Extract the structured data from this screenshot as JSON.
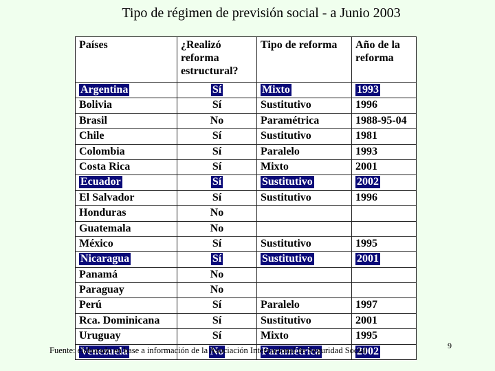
{
  "title": "Tipo de régimen de previsión social - a Junio 2003",
  "table": {
    "headers": [
      "Países",
      "¿Realizó reforma estructural?",
      "Tipo de reforma",
      "Año de la reforma"
    ],
    "rows": [
      {
        "country": "Argentina",
        "reform": "Sí",
        "type": "Mixto",
        "year": "1993",
        "highlight": true
      },
      {
        "country": "Bolivia",
        "reform": "Sí",
        "type": "Sustitutivo",
        "year": "1996",
        "highlight": false
      },
      {
        "country": "Brasil",
        "reform": "No",
        "type": "Paramétrica",
        "year": "1988-95-04",
        "highlight": false
      },
      {
        "country": "Chile",
        "reform": "Sí",
        "type": "Sustitutivo",
        "year": "1981",
        "highlight": false
      },
      {
        "country": "Colombia",
        "reform": "Sí",
        "type": "Paralelo",
        "year": "1993",
        "highlight": false
      },
      {
        "country": "Costa Rica",
        "reform": "Sí",
        "type": "Mixto",
        "year": "2001",
        "highlight": false
      },
      {
        "country": "Ecuador",
        "reform": "Sí",
        "type": "Sustitutivo",
        "year": "2002",
        "highlight": true
      },
      {
        "country": "El Salvador",
        "reform": "Sí",
        "type": "Sustitutivo",
        "year": "1996",
        "highlight": false
      },
      {
        "country": "Honduras",
        "reform": "No",
        "type": "",
        "year": "",
        "highlight": false
      },
      {
        "country": "Guatemala",
        "reform": "No",
        "type": "",
        "year": "",
        "highlight": false
      },
      {
        "country": "México",
        "reform": "Sí",
        "type": "Sustitutivo",
        "year": "1995",
        "highlight": false
      },
      {
        "country": "Nicaragua",
        "reform": "Sí",
        "type": "Sustitutivo",
        "year": "2001",
        "highlight": true
      },
      {
        "country": "Panamá",
        "reform": "No",
        "type": "",
        "year": "",
        "highlight": false
      },
      {
        "country": "Paraguay",
        "reform": "No",
        "type": "",
        "year": "",
        "highlight": false
      },
      {
        "country": "Perú",
        "reform": "Sí",
        "type": "Paralelo",
        "year": "1997",
        "highlight": false
      },
      {
        "country": "Rca. Dominicana",
        "reform": "Sí",
        "type": "Sustitutivo",
        "year": "2001",
        "highlight": false
      },
      {
        "country": "Uruguay",
        "reform": "Sí",
        "type": "Mixto",
        "year": "1995",
        "highlight": false
      },
      {
        "country": "Venezuela",
        "reform": "No",
        "type": "Paramétrica",
        "year": "2002",
        "highlight": true
      }
    ]
  },
  "source": "Fuente: elaborado en base a información de la Asociación Internacional de Seguridad Social",
  "page_number": "9",
  "colors": {
    "highlight_bg": "#0a0a78",
    "highlight_text": "#ffffff",
    "page_bg": "#f0ffee"
  }
}
